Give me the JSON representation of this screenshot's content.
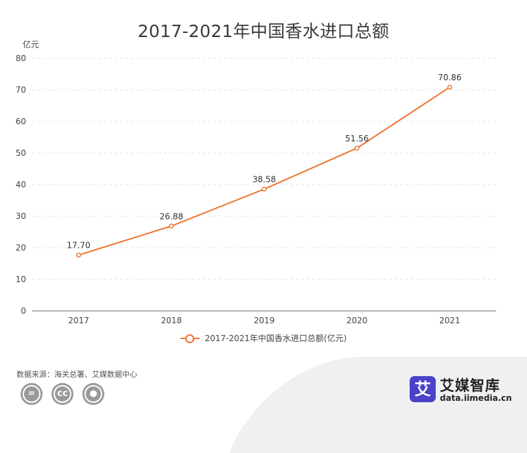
{
  "chart_data": {
    "type": "line",
    "title": "2017-2021年中国香水进口总额",
    "ylabel": "亿元",
    "xlabel": "",
    "categories": [
      "2017",
      "2018",
      "2019",
      "2020",
      "2021"
    ],
    "series": [
      {
        "name": "2017-2021年中国香水进口总额(亿元)",
        "values": [
          17.7,
          26.88,
          38.58,
          51.56,
          70.86
        ],
        "labels": [
          "17.70",
          "26.88",
          "38.58",
          "51.56",
          "70.86"
        ],
        "color": "#ed7530"
      }
    ],
    "ylim": [
      0,
      80
    ],
    "yticks": [
      "0",
      "10",
      "20",
      "30",
      "40",
      "50",
      "60",
      "70",
      "80"
    ],
    "grid": true,
    "legend": "bottom-center"
  },
  "footer": {
    "source": "数据来源：海关总署、艾媒数据中心",
    "cc_icons": [
      "equals-icon",
      "cc-icon",
      "person-icon"
    ]
  },
  "brand": {
    "logo_char": "艾",
    "name": "艾媒智库",
    "url": "data.iimedia.cn"
  }
}
